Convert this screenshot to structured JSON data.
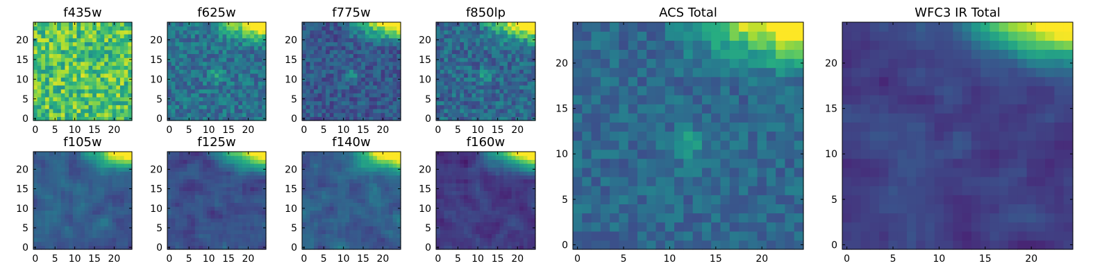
{
  "chart_data": [
    {
      "type": "heatmap",
      "title": "f435w",
      "x_ticks": [
        "0",
        "5",
        "10",
        "15",
        "20"
      ],
      "y_ticks": [
        "0",
        "5",
        "10",
        "15",
        "20"
      ],
      "xlim": [
        -0.5,
        24.5
      ],
      "ylim": [
        -0.5,
        24.5
      ],
      "grid": false,
      "colormap": "viridis",
      "pattern": "noise",
      "source_position": [
        12,
        11
      ],
      "source_strength": 0.05,
      "top_right_strength": 0.0,
      "base_level": 0.72,
      "noise_level": 0.22,
      "seed": 11
    },
    {
      "type": "heatmap",
      "title": "f625w",
      "x_ticks": [
        "0",
        "5",
        "10",
        "15",
        "20"
      ],
      "y_ticks": [
        "0",
        "5",
        "10",
        "15",
        "20"
      ],
      "xlim": [
        -0.5,
        24.5
      ],
      "ylim": [
        -0.5,
        24.5
      ],
      "grid": false,
      "colormap": "viridis",
      "pattern": "corner",
      "source_position": [
        12,
        11
      ],
      "source_strength": 0.25,
      "top_right_strength": 0.7,
      "base_level": 0.38,
      "noise_level": 0.14,
      "seed": 23
    },
    {
      "type": "heatmap",
      "title": "f775w",
      "x_ticks": [
        "0",
        "5",
        "10",
        "15",
        "20"
      ],
      "y_ticks": [
        "0",
        "5",
        "10",
        "15",
        "20"
      ],
      "xlim": [
        -0.5,
        24.5
      ],
      "ylim": [
        -0.5,
        24.5
      ],
      "grid": false,
      "colormap": "viridis",
      "pattern": "corner",
      "source_position": [
        12,
        11
      ],
      "source_strength": 0.22,
      "top_right_strength": 0.75,
      "base_level": 0.28,
      "noise_level": 0.12,
      "seed": 37
    },
    {
      "type": "heatmap",
      "title": "f850lp",
      "x_ticks": [
        "0",
        "5",
        "10",
        "15",
        "20"
      ],
      "y_ticks": [
        "0",
        "5",
        "10",
        "15",
        "20"
      ],
      "xlim": [
        -0.5,
        24.5
      ],
      "ylim": [
        -0.5,
        24.5
      ],
      "grid": false,
      "colormap": "viridis",
      "pattern": "corner",
      "source_position": [
        12,
        11
      ],
      "source_strength": 0.2,
      "top_right_strength": 0.75,
      "base_level": 0.34,
      "noise_level": 0.14,
      "seed": 41
    },
    {
      "type": "heatmap",
      "title": "f105w",
      "x_ticks": [
        "0",
        "5",
        "10",
        "15",
        "20"
      ],
      "y_ticks": [
        "0",
        "5",
        "10",
        "15",
        "20"
      ],
      "xlim": [
        -0.5,
        24.5
      ],
      "ylim": [
        -0.5,
        24.5
      ],
      "grid": false,
      "colormap": "viridis",
      "pattern": "smooth",
      "source_position": [
        12,
        11
      ],
      "source_strength": 0.08,
      "top_right_strength": 0.75,
      "base_level": 0.3,
      "noise_level": 0.09,
      "seed": 53
    },
    {
      "type": "heatmap",
      "title": "f125w",
      "x_ticks": [
        "0",
        "5",
        "10",
        "15",
        "20"
      ],
      "y_ticks": [
        "0",
        "5",
        "10",
        "15",
        "20"
      ],
      "xlim": [
        -0.5,
        24.5
      ],
      "ylim": [
        -0.5,
        24.5
      ],
      "grid": false,
      "colormap": "viridis",
      "pattern": "smooth",
      "source_position": [
        12,
        11
      ],
      "source_strength": 0.1,
      "top_right_strength": 0.75,
      "base_level": 0.24,
      "noise_level": 0.09,
      "seed": 61
    },
    {
      "type": "heatmap",
      "title": "f140w",
      "x_ticks": [
        "0",
        "5",
        "10",
        "15",
        "20"
      ],
      "y_ticks": [
        "0",
        "5",
        "10",
        "15",
        "20"
      ],
      "xlim": [
        -0.5,
        24.5
      ],
      "ylim": [
        -0.5,
        24.5
      ],
      "grid": false,
      "colormap": "viridis",
      "pattern": "smooth",
      "source_position": [
        12,
        11
      ],
      "source_strength": 0.1,
      "top_right_strength": 0.8,
      "base_level": 0.3,
      "noise_level": 0.1,
      "seed": 73
    },
    {
      "type": "heatmap",
      "title": "f160w",
      "x_ticks": [
        "0",
        "5",
        "10",
        "15",
        "20"
      ],
      "y_ticks": [
        "0",
        "5",
        "10",
        "15",
        "20"
      ],
      "xlim": [
        -0.5,
        24.5
      ],
      "ylim": [
        -0.5,
        24.5
      ],
      "grid": false,
      "colormap": "viridis",
      "pattern": "smooth",
      "source_position": [
        12,
        11
      ],
      "source_strength": 0.06,
      "top_right_strength": 0.85,
      "base_level": 0.18,
      "noise_level": 0.08,
      "seed": 89
    },
    {
      "type": "heatmap",
      "title": "ACS Total",
      "x_ticks": [
        "0",
        "5",
        "10",
        "15",
        "20"
      ],
      "y_ticks": [
        "0",
        "5",
        "10",
        "15",
        "20"
      ],
      "xlim": [
        -0.5,
        24.5
      ],
      "ylim": [
        -0.5,
        24.5
      ],
      "grid": false,
      "colormap": "viridis",
      "pattern": "corner",
      "source_position": [
        12,
        11
      ],
      "source_strength": 0.25,
      "top_right_strength": 0.7,
      "base_level": 0.34,
      "noise_level": 0.1,
      "seed": 97
    },
    {
      "type": "heatmap",
      "title": "WFC3 IR Total",
      "x_ticks": [
        "0",
        "5",
        "10",
        "15",
        "20"
      ],
      "y_ticks": [
        "0",
        "5",
        "10",
        "15",
        "20"
      ],
      "xlim": [
        -0.5,
        24.5
      ],
      "ylim": [
        -0.5,
        24.5
      ],
      "grid": false,
      "colormap": "viridis",
      "pattern": "smooth",
      "source_position": [
        12,
        11
      ],
      "source_strength": 0.08,
      "top_right_strength": 0.8,
      "base_level": 0.2,
      "noise_level": 0.07,
      "seed": 101
    }
  ]
}
